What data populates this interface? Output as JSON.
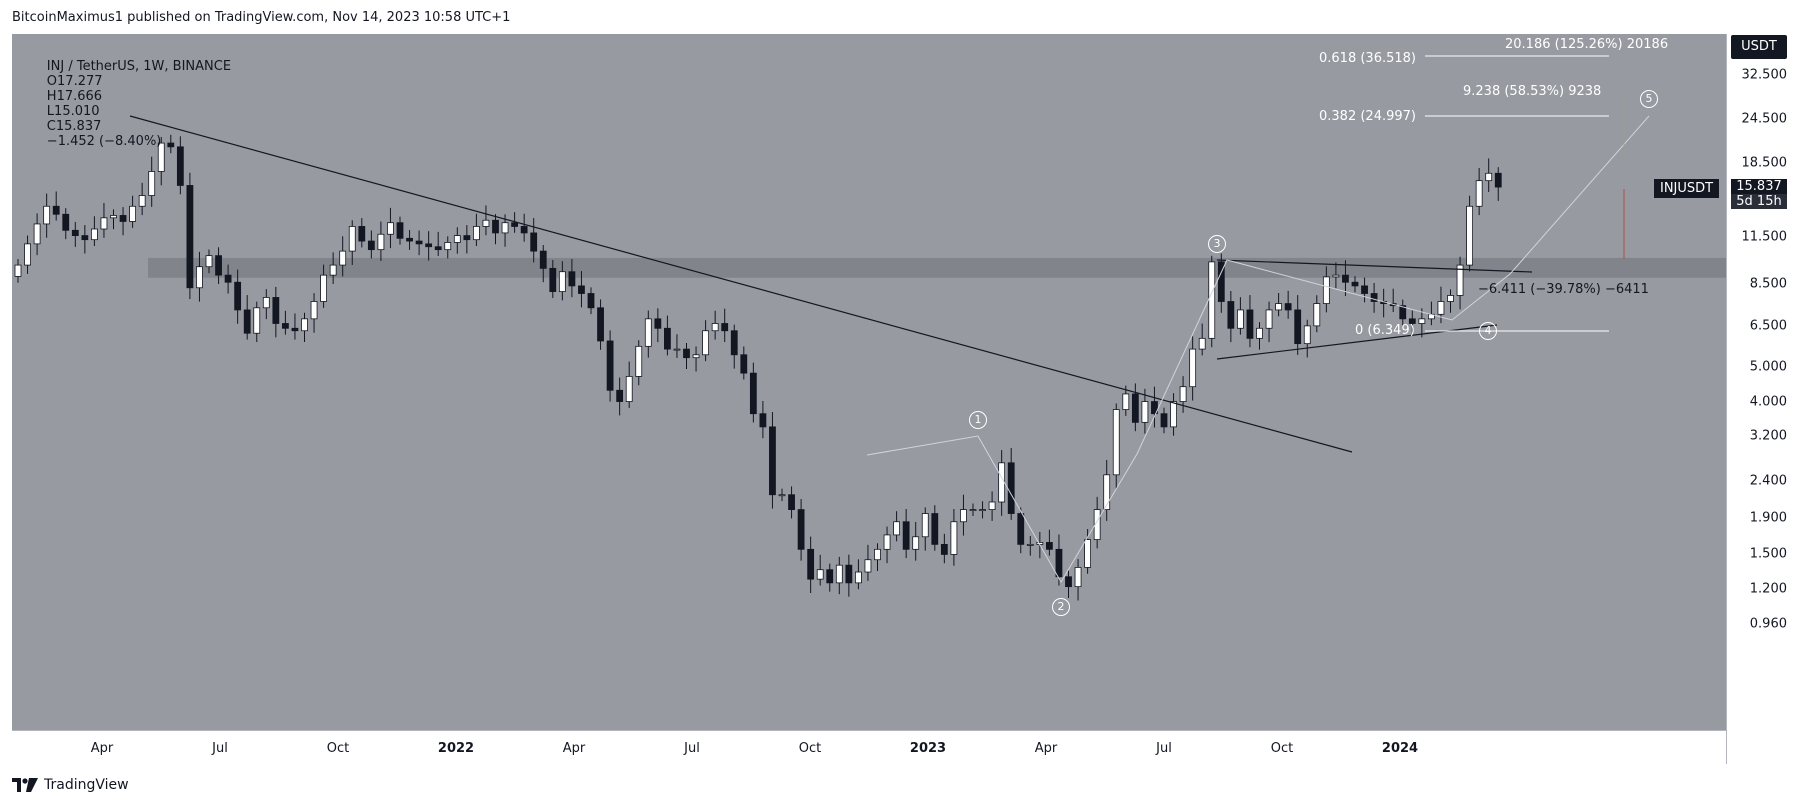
{
  "caption": "BitcoinMaximus1 published on TradingView.com, Nov 14, 2023 10:58 UTC+1",
  "ticker": {
    "symbol": "INJ / TetherUS, 1W, BINANCE",
    "o_label": "O",
    "o": "17.277",
    "h_label": "H",
    "h": "17.666",
    "l_label": "L",
    "l": "15.010",
    "c_label": "C",
    "c": "15.837",
    "change": "−1.452 (−8.40%)"
  },
  "currency_button": "USDT",
  "symbol_tag": "INJUSDT",
  "last_price": "15.837",
  "countdown": "5d 15h",
  "footer_brand": "TradingView",
  "annotations": {
    "target_top": "20.186 (125.26%) 20186",
    "fib_0618": "0.618 (36.518)",
    "target_mid": "9.238 (58.53%) 9238",
    "fib_0382": "0.382 (24.997)",
    "drop": "−6.411 (−39.78%) −6411",
    "fib_0": "0 (6.349)"
  },
  "waves": [
    "1",
    "2",
    "3",
    "4",
    "5"
  ],
  "colors": {
    "plot_bg": "#989aa1",
    "up_candle": "#ffffff",
    "down_candle": "#131722",
    "resistance_band": "#7c7f86",
    "trendline": "#131722",
    "projection": "#d1d4dc"
  },
  "chart_data": {
    "type": "candlestick",
    "title": "INJ / TetherUS, 1W, BINANCE",
    "y_scale": "log",
    "y_ticks": [
      "32.500",
      "24.500",
      "18.500",
      "11.500",
      "8.500",
      "6.500",
      "5.000",
      "4.000",
      "3.200",
      "2.400",
      "1.900",
      "1.500",
      "1.200",
      "0.960"
    ],
    "x_ticks": [
      {
        "label": "Apr",
        "bold": false
      },
      {
        "label": "Jul",
        "bold": false
      },
      {
        "label": "Oct",
        "bold": false
      },
      {
        "label": "2022",
        "bold": true
      },
      {
        "label": "Apr",
        "bold": false
      },
      {
        "label": "Jul",
        "bold": false
      },
      {
        "label": "Oct",
        "bold": false
      },
      {
        "label": "2023",
        "bold": true
      },
      {
        "label": "Apr",
        "bold": false
      },
      {
        "label": "Jul",
        "bold": false
      },
      {
        "label": "Oct",
        "bold": false
      },
      {
        "label": "2024",
        "bold": true
      }
    ],
    "weekly_close": [
      9.6,
      11.0,
      12.5,
      14.0,
      13.3,
      12.0,
      11.6,
      11.3,
      12.1,
      13.0,
      13.2,
      12.7,
      14.0,
      15.0,
      17.5,
      21.0,
      20.5,
      16.0,
      8.3,
      9.5,
      10.2,
      9.0,
      8.6,
      7.2,
      6.2,
      7.3,
      7.8,
      6.6,
      6.4,
      6.3,
      6.8,
      7.6,
      9.0,
      9.6,
      10.5,
      12.3,
      11.2,
      10.6,
      11.7,
      12.6,
      11.4,
      11.2,
      11.0,
      10.8,
      10.6,
      11.1,
      11.6,
      11.3,
      12.3,
      12.8,
      11.8,
      12.6,
      12.3,
      11.8,
      10.5,
      9.4,
      8.1,
      9.2,
      8.4,
      8.0,
      7.3,
      5.9,
      4.3,
      4.0,
      4.7,
      5.7,
      6.8,
      6.4,
      5.6,
      5.6,
      5.3,
      5.4,
      6.3,
      6.6,
      6.3,
      5.4,
      4.8,
      3.7,
      3.4,
      2.2,
      2.2,
      2.0,
      1.55,
      1.28,
      1.36,
      1.25,
      1.4,
      1.25,
      1.34,
      1.45,
      1.55,
      1.7,
      1.85,
      1.55,
      1.68,
      1.95,
      1.6,
      1.5,
      1.85,
      2.0,
      2.0,
      2.0,
      2.1,
      2.7,
      1.95,
      1.6,
      1.6,
      1.62,
      1.55,
      1.3,
      1.22,
      1.38,
      1.65,
      2.0,
      2.5,
      3.8,
      4.2,
      3.5,
      4.0,
      3.7,
      3.4,
      4.0,
      4.4,
      5.6,
      6.0,
      9.8,
      7.6,
      6.4,
      7.2,
      6.0,
      6.4,
      7.2,
      7.5,
      7.2,
      5.8,
      6.5,
      7.5,
      8.9,
      9.0,
      8.6,
      8.4,
      8.0,
      7.6,
      7.5,
      7.4,
      6.8,
      6.6,
      6.8,
      7.0,
      7.6,
      7.9,
      9.6,
      14.0,
      16.5,
      17.3,
      15.837
    ]
  }
}
